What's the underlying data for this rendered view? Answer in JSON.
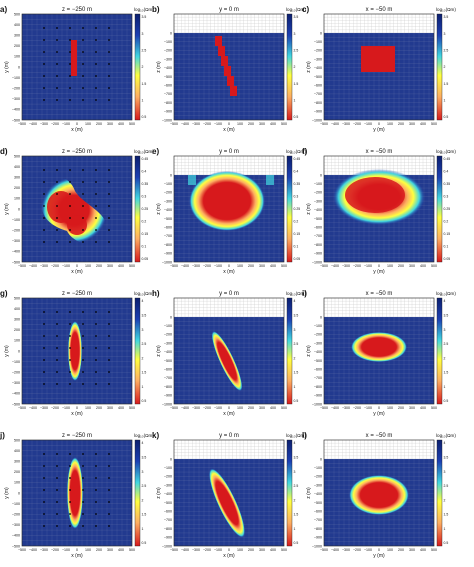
{
  "figure": {
    "colors": {
      "background": "#223a8f",
      "grid": "#8a96b8",
      "air_grid": "#c9c9c9",
      "station": "#000000",
      "red": "#d7191c",
      "orange": "#fdae61",
      "yellow": "#ffff3f",
      "cyan": "#41d6e0",
      "blue": "#1c3fb2"
    },
    "columns": [
      {
        "title": "z = −250 m",
        "xlabel": "x (m)",
        "ylabel": "y (m)",
        "xticks": [
          "−500",
          "−400",
          "−300",
          "−200",
          "−100",
          "0",
          "100",
          "200",
          "300",
          "400",
          "500"
        ],
        "yticks": [
          "500",
          "400",
          "300",
          "200",
          "100",
          "0",
          "−100",
          "−200",
          "−300",
          "−400",
          "−500"
        ]
      },
      {
        "title": "y = 0 m",
        "xlabel": "x (m)",
        "ylabel": "z (m)",
        "xticks": [
          "−500",
          "−400",
          "−300",
          "−200",
          "−100",
          "0",
          "100",
          "200",
          "300",
          "400",
          "500"
        ],
        "yticks": [
          "0",
          "−100",
          "−200",
          "−300",
          "−400",
          "−500",
          "−600",
          "−700",
          "−800",
          "−900",
          "−1000"
        ]
      },
      {
        "title": "x = −50 m",
        "xlabel": "y (m)",
        "ylabel": "z (m)",
        "xticks": [
          "−500",
          "−400",
          "−300",
          "−200",
          "−100",
          "0",
          "100",
          "200",
          "300",
          "400",
          "500"
        ],
        "yticks": [
          "0",
          "−100",
          "−200",
          "−300",
          "−400",
          "−500",
          "−600",
          "−700",
          "−800",
          "−900",
          "−1000"
        ]
      }
    ],
    "colorbar_label": "log₁₀(Ωm)",
    "colorbar_ticks_true": [
      "3.5",
      "3",
      "2.5",
      "2",
      "1.5",
      "1",
      "0.5"
    ],
    "colorbar_ticks_rec": [
      "0.45",
      "0.4",
      "0.35",
      "0.3",
      "0.25",
      "0.2",
      "0.15",
      "0.1",
      "0.05"
    ],
    "colorbar_ticks_mid": [
      "4",
      "3.5",
      "3",
      "2.5",
      "2",
      "1.5",
      "1",
      "0.5"
    ],
    "rows": [
      {
        "labels": [
          "a)",
          "b)",
          "c)"
        ],
        "ticks": "colorbar_ticks_true"
      },
      {
        "labels": [
          "d)",
          "e)",
          "f)"
        ],
        "ticks": "colorbar_ticks_rec"
      },
      {
        "labels": [
          "g)",
          "h)",
          "i)"
        ],
        "ticks": "colorbar_ticks_mid"
      },
      {
        "labels": [
          "j)",
          "k)",
          "l)"
        ],
        "ticks": "colorbar_ticks_mid"
      }
    ]
  }
}
